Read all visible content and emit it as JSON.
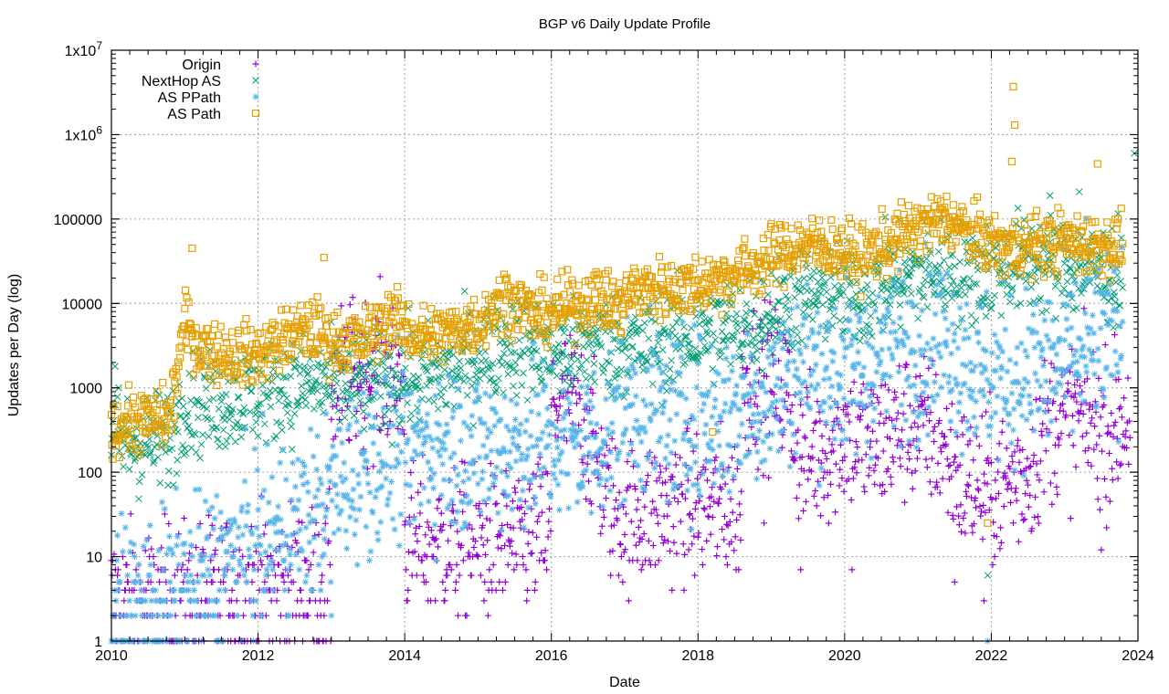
{
  "chart_data": {
    "type": "scatter",
    "title": "BGP v6 Daily Update Profile",
    "xlabel": "Date",
    "ylabel": "Updates per Day (log)",
    "xlim": [
      2010,
      2024
    ],
    "ylim": [
      1,
      10000000
    ],
    "yscale": "log",
    "grid": true,
    "legend_position": "top-left",
    "x_ticks": [
      "2010",
      "2012",
      "2014",
      "2016",
      "2018",
      "2020",
      "2022",
      "2024"
    ],
    "x_tick_values": [
      2010,
      2012,
      2014,
      2016,
      2018,
      2020,
      2022,
      2024
    ],
    "y_ticks": [
      "1",
      "10",
      "100",
      "1000",
      "10000",
      "100000",
      "1x10^6",
      "1x10^7"
    ],
    "y_tick_values": [
      1,
      10,
      100,
      1000,
      10000,
      100000,
      1000000,
      10000000
    ],
    "series": [
      {
        "name": "Origin",
        "marker": "plus",
        "color": "#9400d3",
        "spread_decades": 0.45,
        "points": [
          [
            2010.0,
            3
          ],
          [
            2010.5,
            3
          ],
          [
            2011.0,
            3
          ],
          [
            2011.5,
            4
          ],
          [
            2012.0,
            4
          ],
          [
            2012.5,
            5
          ],
          [
            2012.9,
            5
          ],
          [
            2013.0,
            1000
          ],
          [
            2013.4,
            1500
          ],
          [
            2013.9,
            1400
          ],
          [
            2014.0,
            15
          ],
          [
            2014.5,
            15
          ],
          [
            2015.0,
            14
          ],
          [
            2015.5,
            15
          ],
          [
            2015.9,
            20
          ],
          [
            2016.0,
            700
          ],
          [
            2016.4,
            600
          ],
          [
            2016.8,
            40
          ],
          [
            2017.0,
            30
          ],
          [
            2017.4,
            35
          ],
          [
            2017.8,
            40
          ],
          [
            2018.2,
            40
          ],
          [
            2018.6,
            1500
          ],
          [
            2018.9,
            1200
          ],
          [
            2019.2,
            1000
          ],
          [
            2019.4,
            150
          ],
          [
            2019.8,
            200
          ],
          [
            2020.0,
            300
          ],
          [
            2020.4,
            200
          ],
          [
            2020.8,
            350
          ],
          [
            2021.2,
            300
          ],
          [
            2021.6,
            80
          ],
          [
            2022.0,
            60
          ],
          [
            2022.5,
            100
          ],
          [
            2022.8,
            400
          ],
          [
            2023.2,
            450
          ],
          [
            2023.6,
            300
          ],
          [
            2023.9,
            500
          ]
        ],
        "outliers": [
          [
            2018.9,
            25
          ],
          [
            2019.4,
            7
          ],
          [
            2020.1,
            7
          ],
          [
            2021.5,
            5
          ],
          [
            2021.9,
            3
          ],
          [
            2023.5,
            12
          ]
        ]
      },
      {
        "name": "NextHop AS",
        "marker": "x",
        "color": "#009e73",
        "spread_decades": 0.3,
        "points": [
          [
            2010.0,
            250
          ],
          [
            2010.4,
            220
          ],
          [
            2010.8,
            250
          ],
          [
            2011.0,
            700
          ],
          [
            2011.4,
            650
          ],
          [
            2011.8,
            800
          ],
          [
            2012.2,
            900
          ],
          [
            2012.6,
            1100
          ],
          [
            2013.0,
            1100
          ],
          [
            2013.4,
            1100
          ],
          [
            2013.8,
            1200
          ],
          [
            2014.2,
            1300
          ],
          [
            2014.6,
            1500
          ],
          [
            2015.0,
            2500
          ],
          [
            2015.4,
            3500
          ],
          [
            2015.8,
            3000
          ],
          [
            2016.2,
            2500
          ],
          [
            2016.6,
            3500
          ],
          [
            2016.9,
            3000
          ],
          [
            2017.1,
            3000
          ],
          [
            2017.5,
            3500
          ],
          [
            2017.9,
            4000
          ],
          [
            2018.3,
            5000
          ],
          [
            2018.7,
            6000
          ],
          [
            2019.0,
            8000
          ],
          [
            2019.4,
            12000
          ],
          [
            2019.8,
            13000
          ],
          [
            2020.2,
            12000
          ],
          [
            2020.6,
            18000
          ],
          [
            2021.0,
            22000
          ],
          [
            2021.4,
            25000
          ],
          [
            2021.8,
            22000
          ],
          [
            2022.2,
            28000
          ],
          [
            2022.6,
            30000
          ],
          [
            2023.0,
            28000
          ],
          [
            2023.4,
            25000
          ],
          [
            2023.8,
            20000
          ]
        ],
        "outliers": [
          [
            2010.05,
            1800
          ],
          [
            2023.95,
            600000
          ],
          [
            2023.2,
            210000
          ],
          [
            2022.8,
            190000
          ],
          [
            2021.95,
            6
          ]
        ]
      },
      {
        "name": "AS PPath",
        "marker": "star",
        "color": "#56b4e9",
        "spread_decades": 0.5,
        "points": [
          [
            2010.0,
            2
          ],
          [
            2010.5,
            3
          ],
          [
            2011.0,
            4
          ],
          [
            2011.5,
            8
          ],
          [
            2012.0,
            15
          ],
          [
            2012.5,
            25
          ],
          [
            2012.9,
            40
          ],
          [
            2013.3,
            100
          ],
          [
            2013.7,
            150
          ],
          [
            2014.0,
            200
          ],
          [
            2014.5,
            200
          ],
          [
            2015.0,
            180
          ],
          [
            2015.5,
            200
          ],
          [
            2015.9,
            250
          ],
          [
            2016.3,
            200
          ],
          [
            2016.8,
            300
          ],
          [
            2017.1,
            600
          ],
          [
            2017.5,
            500
          ],
          [
            2017.9,
            400
          ],
          [
            2018.3,
            500
          ],
          [
            2018.7,
            600
          ],
          [
            2019.0,
            800
          ],
          [
            2019.4,
            2000
          ],
          [
            2019.8,
            1500
          ],
          [
            2020.2,
            1500
          ],
          [
            2020.6,
            3000
          ],
          [
            2021.0,
            3000
          ],
          [
            2021.4,
            4000
          ],
          [
            2021.8,
            1500
          ],
          [
            2022.2,
            1200
          ],
          [
            2022.6,
            1500
          ],
          [
            2023.0,
            2000
          ],
          [
            2023.4,
            3000
          ],
          [
            2023.8,
            5000
          ]
        ],
        "outliers": [
          [
            2021.95,
            1
          ],
          [
            2013.0,
            2
          ],
          [
            2023.3,
            100000
          ]
        ]
      },
      {
        "name": "AS Path",
        "marker": "square",
        "color": "#e69f00",
        "spread_decades": 0.18,
        "points": [
          [
            2010.0,
            350
          ],
          [
            2010.4,
            400
          ],
          [
            2010.8,
            450
          ],
          [
            2011.0,
            6000
          ],
          [
            2011.2,
            3000
          ],
          [
            2011.6,
            2500
          ],
          [
            2012.0,
            2500
          ],
          [
            2012.4,
            4000
          ],
          [
            2012.8,
            5000
          ],
          [
            2013.0,
            3500
          ],
          [
            2013.4,
            3500
          ],
          [
            2013.8,
            7000
          ],
          [
            2014.2,
            4000
          ],
          [
            2014.6,
            4500
          ],
          [
            2015.0,
            6000
          ],
          [
            2015.4,
            12000
          ],
          [
            2015.8,
            7000
          ],
          [
            2016.2,
            9000
          ],
          [
            2016.6,
            12000
          ],
          [
            2016.9,
            9000
          ],
          [
            2017.1,
            14000
          ],
          [
            2017.5,
            15000
          ],
          [
            2017.9,
            16000
          ],
          [
            2018.3,
            20000
          ],
          [
            2018.7,
            25000
          ],
          [
            2019.0,
            35000
          ],
          [
            2019.4,
            50000
          ],
          [
            2019.8,
            45000
          ],
          [
            2020.2,
            35000
          ],
          [
            2020.6,
            50000
          ],
          [
            2021.0,
            80000
          ],
          [
            2021.4,
            100000
          ],
          [
            2021.8,
            60000
          ],
          [
            2022.2,
            45000
          ],
          [
            2022.6,
            50000
          ],
          [
            2023.0,
            55000
          ],
          [
            2023.4,
            50000
          ],
          [
            2023.8,
            50000
          ]
        ],
        "outliers": [
          [
            2011.1,
            45000
          ],
          [
            2012.9,
            35000
          ],
          [
            2022.3,
            3700000
          ],
          [
            2022.32,
            1300000
          ],
          [
            2022.28,
            480000
          ],
          [
            2023.45,
            450000
          ],
          [
            2021.95,
            25
          ],
          [
            2018.2,
            300
          ]
        ]
      }
    ]
  }
}
